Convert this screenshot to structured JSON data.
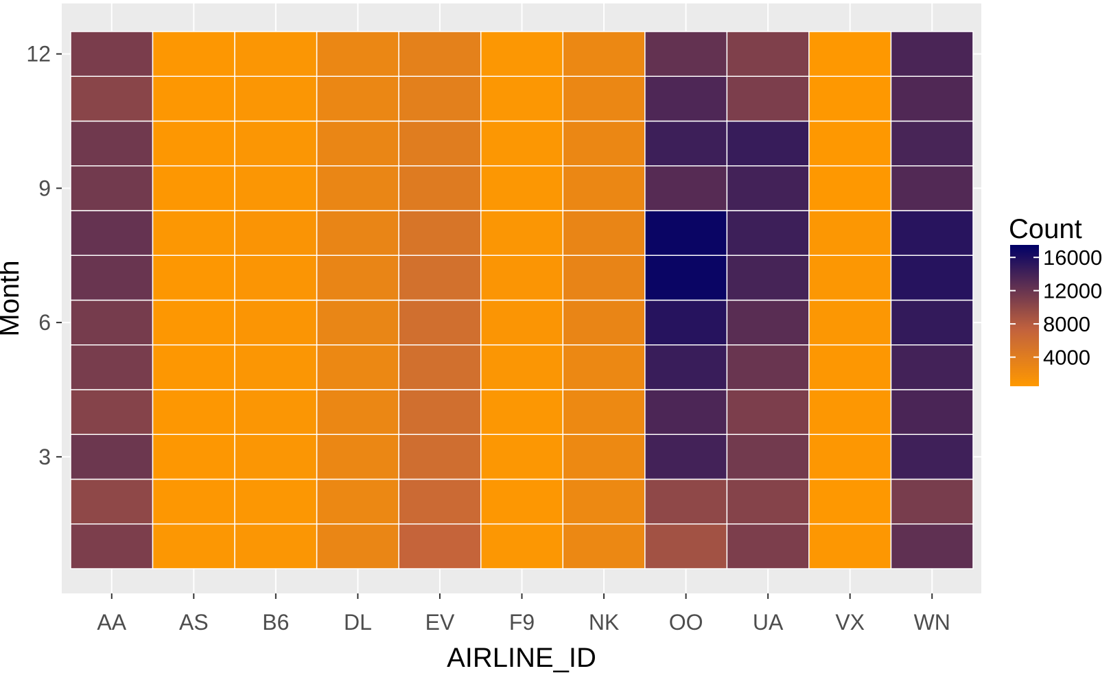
{
  "chart_data": {
    "type": "heatmap",
    "title": "",
    "xlabel": "AIRLINE_ID",
    "ylabel": "Month",
    "categories": [
      "AA",
      "AS",
      "B6",
      "DL",
      "EV",
      "F9",
      "NK",
      "OO",
      "UA",
      "VX",
      "WN"
    ],
    "months": [
      1,
      2,
      3,
      4,
      5,
      6,
      7,
      8,
      9,
      10,
      11,
      12
    ],
    "y_ticks": [
      3,
      6,
      9,
      12
    ],
    "ylim": [
      0.5,
      12.5
    ],
    "values": [
      [
        11000,
        800,
        900,
        2800,
        7000,
        800,
        2600,
        9000,
        11000,
        700,
        12500
      ],
      [
        10000,
        700,
        800,
        2600,
        6300,
        700,
        2500,
        10000,
        10500,
        600,
        11200
      ],
      [
        11800,
        700,
        900,
        2700,
        5800,
        800,
        2500,
        14000,
        11500,
        700,
        14200
      ],
      [
        10500,
        700,
        900,
        2700,
        5700,
        800,
        2500,
        13500,
        11000,
        700,
        13600
      ],
      [
        11200,
        700,
        900,
        2600,
        5600,
        900,
        2600,
        14500,
        12000,
        700,
        14000
      ],
      [
        11300,
        700,
        1000,
        2900,
        5700,
        1000,
        3000,
        15500,
        12800,
        800,
        14800
      ],
      [
        12000,
        700,
        1000,
        3000,
        5500,
        1000,
        3100,
        17000,
        13800,
        800,
        15500
      ],
      [
        12200,
        800,
        1100,
        3000,
        5000,
        900,
        3000,
        17000,
        14300,
        800,
        15400
      ],
      [
        11500,
        700,
        900,
        2800,
        4200,
        800,
        2700,
        13000,
        14000,
        600,
        13200
      ],
      [
        11600,
        700,
        900,
        2800,
        4000,
        800,
        2700,
        14300,
        14600,
        600,
        13700
      ],
      [
        10300,
        700,
        900,
        2700,
        3600,
        800,
        2700,
        13400,
        11000,
        600,
        13300
      ],
      [
        11100,
        700,
        900,
        2700,
        3500,
        800,
        2600,
        12300,
        10800,
        600,
        13600
      ]
    ],
    "legend": {
      "title": "Count",
      "breaks": [
        4000,
        8000,
        12000,
        16000
      ],
      "labels": [
        "4000",
        "8000",
        "12000",
        "16000"
      ],
      "range": [
        500,
        17500
      ],
      "low_color": "#ff9900",
      "mid_color": "#c2623d",
      "high_color": "#000066",
      "position": "right"
    },
    "panel_background": "#ebebeb",
    "grid": true
  }
}
